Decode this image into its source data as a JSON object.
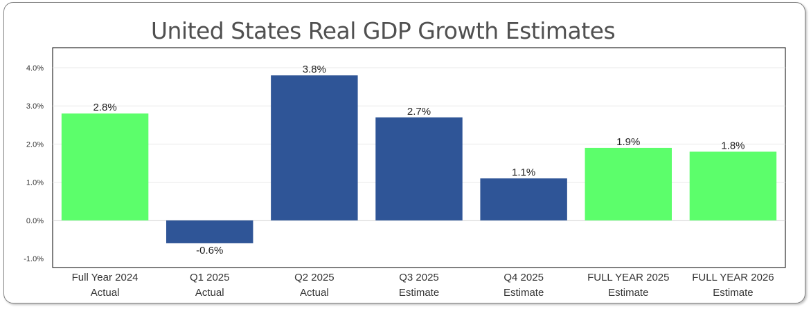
{
  "chart_data": {
    "type": "bar",
    "title": "United States Real GDP Growth Estimates",
    "categories": [
      [
        "Full Year 2024",
        "Actual"
      ],
      [
        "Q1 2025",
        "Actual"
      ],
      [
        "Q2 2025",
        "Actual"
      ],
      [
        "Q3 2025",
        "Estimate"
      ],
      [
        "Q4 2025",
        "Estimate"
      ],
      [
        "FULL YEAR 2025",
        "Estimate"
      ],
      [
        "FULL YEAR 2026",
        "Estimate"
      ]
    ],
    "values": [
      2.8,
      -0.6,
      3.8,
      2.7,
      1.1,
      1.9,
      1.8
    ],
    "data_labels": [
      "2.8%",
      "-0.6%",
      "3.8%",
      "2.7%",
      "1.1%",
      "1.9%",
      "1.8%"
    ],
    "bar_colors": [
      "#5cfe6b",
      "#2f5597",
      "#2f5597",
      "#2f5597",
      "#2f5597",
      "#5cfe6b",
      "#5cfe6b"
    ],
    "yticks": [
      4.0,
      3.0,
      2.0,
      1.0,
      0.0,
      -1.0
    ],
    "ytick_labels": [
      "4.0%",
      "3.0%",
      "2.0%",
      "1.0%",
      "0.0%",
      "-1.0%"
    ],
    "ylim": [
      -1.0,
      4.0
    ],
    "grid": true,
    "xlabel": "",
    "ylabel": ""
  }
}
